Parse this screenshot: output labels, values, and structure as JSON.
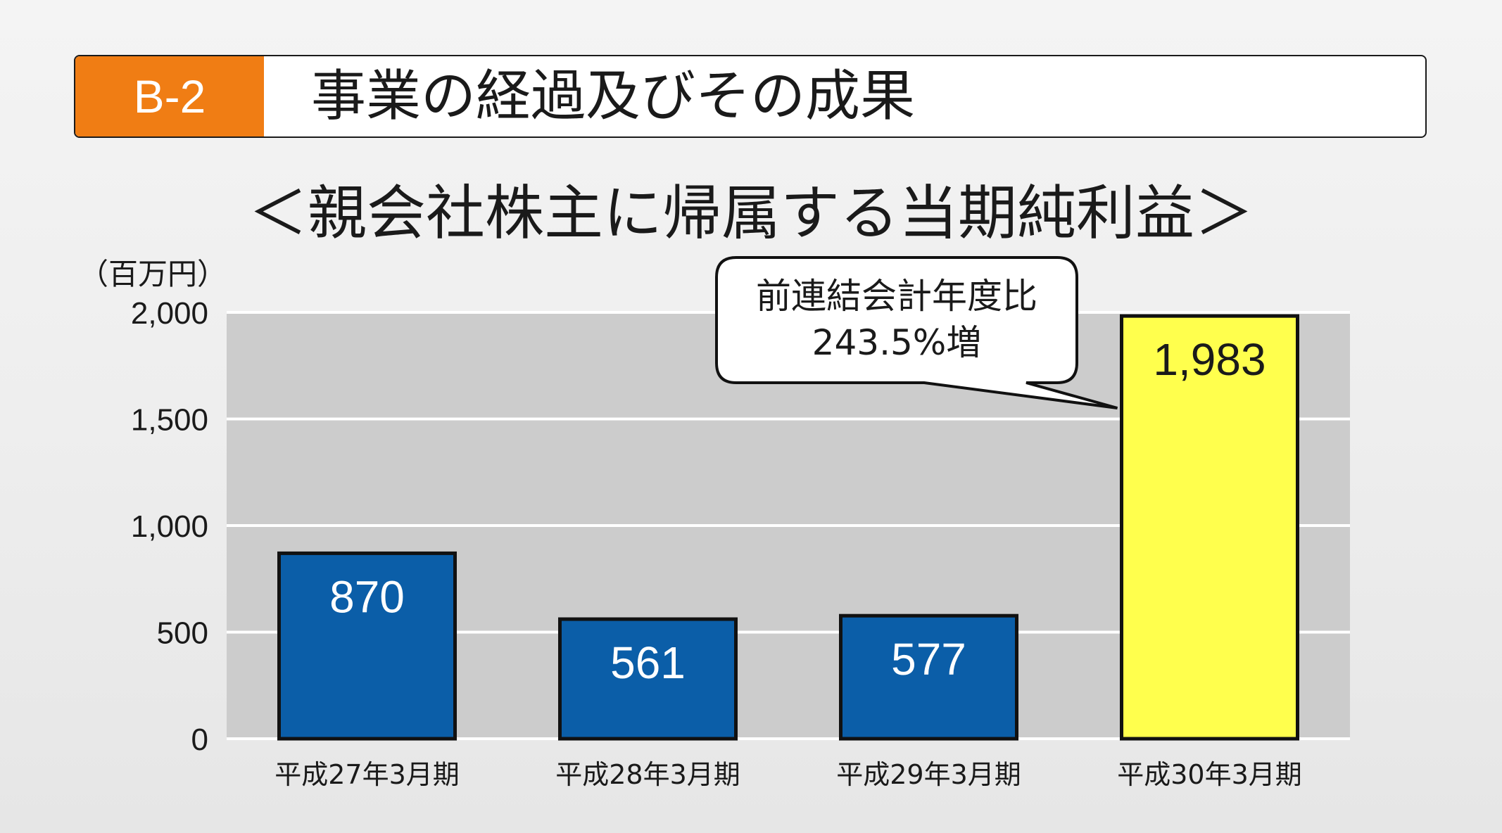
{
  "header": {
    "code": "B-2",
    "title": "事業の経過及びその成果"
  },
  "chart_data": {
    "type": "bar",
    "title": "＜親会社株主に帰属する当期純利益＞",
    "unit": "（百万円）",
    "categories": [
      "平成27年3月期",
      "平成28年3月期",
      "平成29年3月期",
      "平成30年3月期"
    ],
    "values": [
      870,
      561,
      577,
      1983
    ],
    "value_labels": [
      "870",
      "561",
      "577",
      "1,983"
    ],
    "bar_colors": [
      "#0b5ea8",
      "#0b5ea8",
      "#0b5ea8",
      "#ffff4d"
    ],
    "label_colors": [
      "#ffffff",
      "#ffffff",
      "#ffffff",
      "#1a1a1a"
    ],
    "ylim": [
      0,
      2000
    ],
    "yticks": [
      0,
      500,
      1000,
      1500,
      2000
    ],
    "ytick_labels": [
      "0",
      "500",
      "1,000",
      "1,500",
      "2,000"
    ],
    "grid": true,
    "plot_background": "#cccccc",
    "annotation": {
      "line1": "前連結会計年度比",
      "line2": "243.5%増",
      "target_index": 3
    }
  }
}
